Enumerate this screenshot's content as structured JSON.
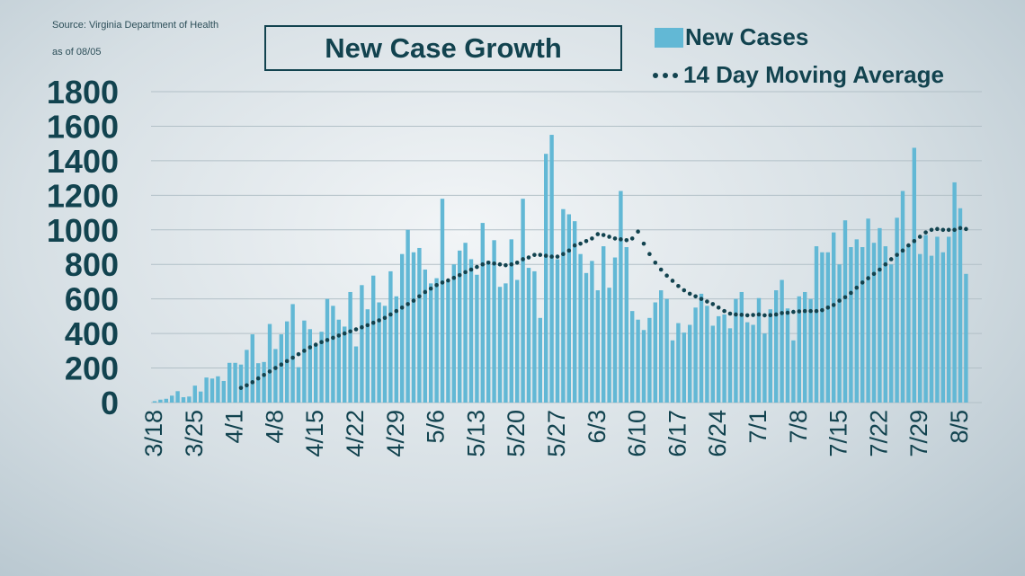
{
  "source": "Source:  Virginia Department  of Health",
  "as_of": "as of 08/05",
  "colors": {
    "bars": "#62b8d5",
    "line": "#12434f",
    "text": "#12434f",
    "grid": "#b2c0c7"
  },
  "chart_data": {
    "type": "bar",
    "title": "New Case Growth",
    "xlabel": "",
    "ylabel": "",
    "ylim": [
      0,
      1800
    ],
    "yticks": [
      0,
      200,
      400,
      600,
      800,
      1000,
      1200,
      1400,
      1600,
      1800
    ],
    "xticks": [
      "3/18",
      "3/25",
      "4/1",
      "4/8",
      "4/15",
      "4/22",
      "4/29",
      "5/6",
      "5/13",
      "5/20",
      "5/27",
      "6/3",
      "6/10",
      "6/17",
      "6/24",
      "7/1",
      "7/8",
      "7/15",
      "7/22",
      "7/29",
      "8/5"
    ],
    "grid": true,
    "legend_position": "top-right",
    "series": [
      {
        "name": "New Cases",
        "kind": "bar",
        "values": [
          8,
          17,
          22,
          40,
          66,
          31,
          35,
          98,
          64,
          145,
          139,
          152,
          125,
          230,
          230,
          220,
          305,
          395,
          228,
          235,
          455,
          310,
          395,
          470,
          570,
          205,
          475,
          425,
          340,
          410,
          600,
          560,
          480,
          440,
          640,
          325,
          680,
          540,
          735,
          580,
          560,
          760,
          615,
          860,
          1000,
          870,
          895,
          770,
          690,
          720,
          1180,
          700,
          800,
          880,
          925,
          830,
          740,
          1040,
          820,
          940,
          670,
          690,
          945,
          710,
          1180,
          780,
          760,
          490,
          1440,
          1550,
          830,
          1120,
          1090,
          1050,
          860,
          750,
          820,
          650,
          905,
          665,
          840,
          1225,
          900,
          530,
          480,
          420,
          490,
          580,
          650,
          600,
          360,
          460,
          405,
          450,
          550,
          630,
          560,
          445,
          500,
          510,
          430,
          600,
          640,
          465,
          450,
          605,
          400,
          540,
          650,
          710,
          545,
          360,
          615,
          640,
          600,
          905,
          870,
          870,
          985,
          800,
          1055,
          900,
          945,
          900,
          1065,
          925,
          1010,
          905,
          800,
          1070,
          1225,
          915,
          1475,
          860,
          970,
          850,
          960,
          870,
          960,
          1275,
          1125,
          745
        ]
      },
      {
        "name": "14 Day Moving Average",
        "kind": "dotted-line",
        "values": [
          85,
          100,
          118,
          140,
          160,
          180,
          200,
          220,
          240,
          260,
          280,
          300,
          320,
          335,
          350,
          362,
          375,
          388,
          400,
          412,
          424,
          436,
          448,
          462,
          476,
          490,
          510,
          530,
          550,
          570,
          590,
          615,
          640,
          660,
          680,
          695,
          707,
          722,
          738,
          755,
          770,
          785,
          800,
          810,
          805,
          800,
          795,
          800,
          810,
          830,
          840,
          855,
          855,
          850,
          845,
          845,
          860,
          880,
          910,
          920,
          935,
          950,
          975,
          970,
          960,
          950,
          945,
          940,
          950,
          990,
          920,
          860,
          810,
          770,
          735,
          705,
          675,
          650,
          630,
          615,
          600,
          585,
          570,
          550,
          530,
          515,
          510,
          508,
          505,
          507,
          510,
          505,
          506,
          510,
          518,
          520,
          525,
          528,
          530,
          530,
          530,
          535,
          550,
          565,
          590,
          610,
          635,
          665,
          695,
          720,
          745,
          770,
          800,
          830,
          855,
          880,
          910,
          935,
          960,
          985,
          1000,
          1005,
          1000,
          1000,
          1000,
          1010,
          1005
        ]
      }
    ]
  }
}
